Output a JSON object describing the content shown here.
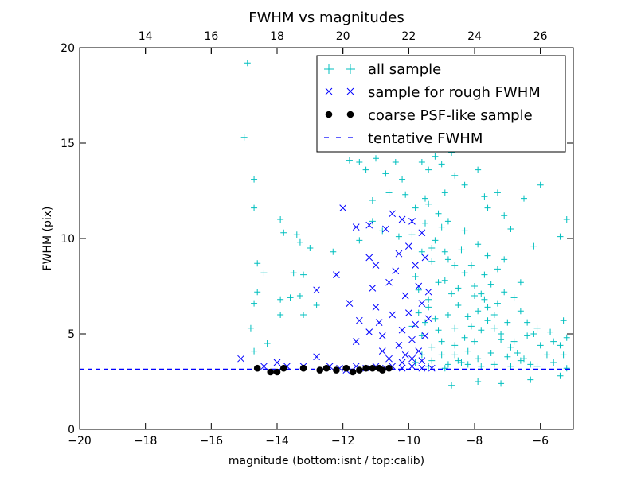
{
  "chart_data": {
    "type": "scatter",
    "title": "FWHM vs magnitudes",
    "xlabel": "magnitude (bottom:isnt / top:calib)",
    "ylabel": "FWHM (pix)",
    "xlim": [
      -20,
      -5
    ],
    "ylim": [
      0,
      20
    ],
    "x_ticks": [
      -20,
      -18,
      -16,
      -14,
      -12,
      -10,
      -8,
      -6
    ],
    "x_tick_labels": [
      "−20",
      "−18",
      "−16",
      "−14",
      "−12",
      "−10",
      "−8",
      "−6"
    ],
    "y_ticks": [
      0,
      5,
      10,
      15,
      20
    ],
    "y_tick_labels": [
      "0",
      "5",
      "10",
      "15",
      "20"
    ],
    "top_axis": {
      "offset": 32,
      "ticks": [
        14,
        16,
        18,
        20,
        22,
        24,
        26
      ],
      "tick_labels": [
        "14",
        "16",
        "18",
        "20",
        "22",
        "24",
        "26"
      ]
    },
    "legend_position": "upper-right",
    "grid": false,
    "series": [
      {
        "name": "all sample",
        "marker": "plus",
        "color": "#00bfbf",
        "points": [
          [
            -14.9,
            19.2
          ],
          [
            -15.0,
            15.3
          ],
          [
            -14.7,
            13.1
          ],
          [
            -14.7,
            11.6
          ],
          [
            -14.6,
            8.7
          ],
          [
            -14.4,
            8.2
          ],
          [
            -14.6,
            7.2
          ],
          [
            -14.7,
            6.6
          ],
          [
            -14.8,
            5.3
          ],
          [
            -14.7,
            4.1
          ],
          [
            -14.3,
            4.5
          ],
          [
            -13.9,
            11.0
          ],
          [
            -13.8,
            10.3
          ],
          [
            -13.9,
            6.8
          ],
          [
            -13.6,
            6.9
          ],
          [
            -13.4,
            10.2
          ],
          [
            -13.3,
            9.8
          ],
          [
            -13.5,
            8.2
          ],
          [
            -13.3,
            7.0
          ],
          [
            -13.9,
            6.0
          ],
          [
            -13.2,
            8.1
          ],
          [
            -13.2,
            6.0
          ],
          [
            -12.8,
            6.5
          ],
          [
            -13.0,
            9.5
          ],
          [
            -12.3,
            9.3
          ],
          [
            -11.8,
            14.1
          ],
          [
            -11.5,
            14.0
          ],
          [
            -11.3,
            13.6
          ],
          [
            -11.0,
            14.2
          ],
          [
            -10.7,
            13.4
          ],
          [
            -10.4,
            14.0
          ],
          [
            -10.2,
            13.1
          ],
          [
            -10.6,
            12.4
          ],
          [
            -11.1,
            12.0
          ],
          [
            -10.1,
            12.3
          ],
          [
            -11.5,
            9.9
          ],
          [
            -11.1,
            10.9
          ],
          [
            -10.8,
            10.4
          ],
          [
            -10.3,
            10.1
          ],
          [
            -9.6,
            14.0
          ],
          [
            -9.4,
            13.6
          ],
          [
            -9.2,
            14.3
          ],
          [
            -9.0,
            13.9
          ],
          [
            -8.7,
            14.5
          ],
          [
            -8.6,
            13.3
          ],
          [
            -8.9,
            12.4
          ],
          [
            -9.5,
            12.1
          ],
          [
            -8.3,
            12.8
          ],
          [
            -7.9,
            13.6
          ],
          [
            -7.7,
            12.2
          ],
          [
            -7.3,
            12.4
          ],
          [
            -6.5,
            12.1
          ],
          [
            -6.0,
            12.8
          ],
          [
            -5.2,
            11.0
          ],
          [
            -7.1,
            11.2
          ],
          [
            -7.6,
            11.6
          ],
          [
            -6.9,
            10.5
          ],
          [
            -5.4,
            10.1
          ],
          [
            -6.2,
            9.6
          ],
          [
            -7.1,
            8.9
          ],
          [
            -6.6,
            7.7
          ],
          [
            -8.7,
            2.3
          ],
          [
            -7.9,
            2.5
          ],
          [
            -7.2,
            2.4
          ],
          [
            -6.3,
            2.6
          ],
          [
            -5.4,
            2.8
          ],
          [
            -5.2,
            3.2
          ],
          [
            -5.3,
            3.9
          ],
          [
            -5.4,
            4.4
          ],
          [
            -5.6,
            4.6
          ],
          [
            -5.2,
            4.8
          ],
          [
            -5.7,
            5.1
          ],
          [
            -5.3,
            5.7
          ],
          [
            -6.1,
            5.3
          ],
          [
            -6.4,
            4.9
          ],
          [
            -6.8,
            4.6
          ],
          [
            -7.2,
            4.7
          ],
          [
            -7.0,
            5.6
          ],
          [
            -7.4,
            6.0
          ],
          [
            -7.6,
            6.4
          ],
          [
            -7.8,
            7.1
          ],
          [
            -8.0,
            7.5
          ],
          [
            -8.3,
            8.2
          ],
          [
            -8.6,
            8.6
          ],
          [
            -8.9,
            9.3
          ],
          [
            -9.2,
            9.9
          ],
          [
            -9.5,
            10.8
          ],
          [
            -9.8,
            11.6
          ],
          [
            -9.9,
            10.2
          ],
          [
            -9.6,
            9.3
          ],
          [
            -9.3,
            8.8
          ],
          [
            -9.1,
            7.7
          ],
          [
            -9.4,
            6.8
          ],
          [
            -9.7,
            6.1
          ],
          [
            -9.9,
            5.4
          ],
          [
            -9.6,
            4.9
          ],
          [
            -9.3,
            4.3
          ],
          [
            -9.0,
            3.9
          ],
          [
            -8.8,
            3.4
          ],
          [
            -8.5,
            3.6
          ],
          [
            -8.2,
            4.1
          ],
          [
            -8.0,
            4.6
          ],
          [
            -7.8,
            5.2
          ],
          [
            -7.6,
            5.7
          ],
          [
            -7.3,
            6.6
          ],
          [
            -7.1,
            7.2
          ],
          [
            -6.8,
            6.9
          ],
          [
            -6.6,
            6.2
          ],
          [
            -6.4,
            5.6
          ],
          [
            -6.2,
            5.0
          ],
          [
            -6.0,
            4.4
          ],
          [
            -5.8,
            3.9
          ],
          [
            -5.6,
            3.5
          ],
          [
            -6.1,
            3.3
          ],
          [
            -6.6,
            3.6
          ],
          [
            -7.0,
            3.8
          ],
          [
            -7.5,
            4.0
          ],
          [
            -7.9,
            3.7
          ],
          [
            -8.4,
            3.5
          ],
          [
            -8.9,
            3.2
          ],
          [
            -9.4,
            3.3
          ],
          [
            -9.8,
            3.5
          ],
          [
            -8.2,
            5.9
          ],
          [
            -8.5,
            6.5
          ],
          [
            -8.7,
            7.1
          ],
          [
            -8.9,
            7.8
          ],
          [
            -8.8,
            8.9
          ],
          [
            -8.4,
            9.4
          ],
          [
            -8.1,
            8.6
          ],
          [
            -7.7,
            8.1
          ],
          [
            -7.5,
            7.6
          ],
          [
            -7.3,
            8.4
          ],
          [
            -7.6,
            9.1
          ],
          [
            -7.9,
            9.7
          ],
          [
            -8.3,
            10.4
          ],
          [
            -8.8,
            10.9
          ],
          [
            -9.1,
            11.3
          ],
          [
            -9.4,
            11.8
          ],
          [
            -9.0,
            10.6
          ],
          [
            -9.3,
            9.5
          ],
          [
            -8.6,
            5.3
          ],
          [
            -8.3,
            4.8
          ],
          [
            -8.1,
            5.4
          ],
          [
            -7.9,
            6.2
          ],
          [
            -7.7,
            6.8
          ],
          [
            -8.6,
            4.4
          ],
          [
            -9.1,
            5.2
          ],
          [
            -9.2,
            5.8
          ],
          [
            -9.4,
            6.4
          ],
          [
            -8.8,
            6.0
          ],
          [
            -8.5,
            7.4
          ],
          [
            -8.0,
            7.0
          ],
          [
            -7.4,
            5.3
          ],
          [
            -7.2,
            5.0
          ],
          [
            -6.9,
            4.3
          ],
          [
            -6.7,
            4.0
          ],
          [
            -6.5,
            3.7
          ],
          [
            -6.3,
            3.4
          ],
          [
            -6.9,
            3.3
          ],
          [
            -7.4,
            3.4
          ],
          [
            -7.8,
            3.3
          ],
          [
            -8.2,
            3.4
          ],
          [
            -8.6,
            3.9
          ],
          [
            -9.0,
            4.6
          ],
          [
            -9.8,
            8.0
          ],
          [
            -9.7,
            7.3
          ],
          [
            -9.5,
            5.6
          ],
          [
            -9.3,
            3.6
          ],
          [
            -9.6,
            3.9
          ]
        ]
      },
      {
        "name": "sample for rough FWHM",
        "marker": "x",
        "color": "#0000ff",
        "points": [
          [
            -15.1,
            3.7
          ],
          [
            -14.4,
            3.3
          ],
          [
            -14.0,
            3.5
          ],
          [
            -13.7,
            3.3
          ],
          [
            -13.2,
            3.3
          ],
          [
            -12.8,
            3.8
          ],
          [
            -12.4,
            3.3
          ],
          [
            -12.1,
            3.2
          ],
          [
            -11.9,
            3.1
          ],
          [
            -11.6,
            3.3
          ],
          [
            -11.3,
            3.2
          ],
          [
            -11.0,
            3.3
          ],
          [
            -10.7,
            3.2
          ],
          [
            -10.5,
            3.3
          ],
          [
            -10.2,
            3.2
          ],
          [
            -9.9,
            3.3
          ],
          [
            -9.6,
            3.2
          ],
          [
            -9.3,
            3.2
          ],
          [
            -12.8,
            7.3
          ],
          [
            -12.2,
            8.1
          ],
          [
            -12.0,
            11.6
          ],
          [
            -11.8,
            6.6
          ],
          [
            -11.6,
            4.6
          ],
          [
            -11.6,
            10.6
          ],
          [
            -11.2,
            10.7
          ],
          [
            -11.2,
            9.0
          ],
          [
            -11.1,
            7.4
          ],
          [
            -11.0,
            8.6
          ],
          [
            -11.0,
            6.4
          ],
          [
            -10.9,
            5.6
          ],
          [
            -10.8,
            4.9
          ],
          [
            -10.7,
            10.5
          ],
          [
            -10.6,
            7.7
          ],
          [
            -10.5,
            6.0
          ],
          [
            -10.5,
            11.3
          ],
          [
            -10.4,
            8.3
          ],
          [
            -10.3,
            9.2
          ],
          [
            -10.3,
            4.4
          ],
          [
            -10.2,
            5.2
          ],
          [
            -10.2,
            11.0
          ],
          [
            -10.1,
            7.0
          ],
          [
            -10.1,
            3.9
          ],
          [
            -10.0,
            9.6
          ],
          [
            -10.0,
            6.1
          ],
          [
            -9.9,
            10.9
          ],
          [
            -9.9,
            4.7
          ],
          [
            -9.8,
            8.6
          ],
          [
            -9.8,
            5.5
          ],
          [
            -9.7,
            7.5
          ],
          [
            -9.7,
            4.1
          ],
          [
            -9.6,
            10.3
          ],
          [
            -9.6,
            6.6
          ],
          [
            -9.5,
            9.0
          ],
          [
            -9.5,
            4.9
          ],
          [
            -9.4,
            5.8
          ],
          [
            -9.4,
            7.2
          ],
          [
            -10.8,
            4.1
          ],
          [
            -11.2,
            5.1
          ],
          [
            -11.5,
            5.7
          ],
          [
            -10.6,
            3.7
          ],
          [
            -10.2,
            3.5
          ],
          [
            -9.9,
            3.7
          ],
          [
            -9.6,
            3.6
          ]
        ]
      },
      {
        "name": "coarse PSF-like sample",
        "marker": "dot",
        "color": "#000000",
        "points": [
          [
            -14.6,
            3.2
          ],
          [
            -14.2,
            3.0
          ],
          [
            -14.0,
            3.0
          ],
          [
            -13.8,
            3.2
          ],
          [
            -13.2,
            3.2
          ],
          [
            -12.7,
            3.1
          ],
          [
            -12.5,
            3.2
          ],
          [
            -12.2,
            3.1
          ],
          [
            -11.9,
            3.2
          ],
          [
            -11.7,
            3.0
          ],
          [
            -11.5,
            3.1
          ],
          [
            -11.3,
            3.2
          ],
          [
            -11.1,
            3.2
          ],
          [
            -10.9,
            3.2
          ],
          [
            -10.8,
            3.1
          ],
          [
            -10.6,
            3.2
          ]
        ]
      }
    ],
    "tentative_fwhm": {
      "name": "tentative FWHM",
      "y": 3.15,
      "color": "#0000ff",
      "style": "dashed"
    }
  }
}
